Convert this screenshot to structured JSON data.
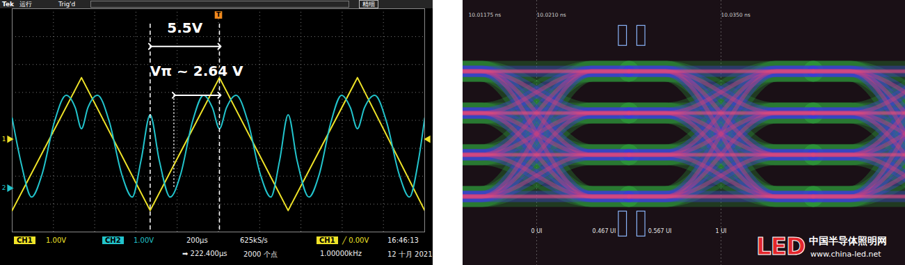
{
  "chart_data": [
    {
      "type": "line",
      "header": [
        "Tek",
        "运行",
        "Trig'd",
        "精细"
      ],
      "xlim": [
        -1000,
        1000
      ],
      "xticks": [
        -1000,
        -800,
        -600,
        -400,
        -200,
        0,
        200,
        400,
        600,
        800,
        1000
      ],
      "ylim": [
        -4,
        4
      ],
      "yticks": [
        -4,
        -3,
        -2,
        -1,
        0,
        1,
        2,
        3,
        4
      ],
      "grid": true,
      "tick_labels": false,
      "series": [
        {
          "name": "CH1",
          "color": "#f0e428",
          "line_style": "straight",
          "x": [
            -1000,
            -664,
            -331,
            5,
            338,
            674,
            1000
          ],
          "values": [
            -3.23,
            1.53,
            -3.23,
            1.53,
            -3.23,
            1.53,
            -3.23
          ]
        },
        {
          "name": "CH2",
          "color": "#22c4cc",
          "line_style": "smooth",
          "x": [
            -1000,
            -956,
            -906,
            -855,
            -795,
            -738,
            -694,
            -664,
            -633,
            -586,
            -529,
            -469,
            -418,
            -375,
            -331,
            -287,
            -234,
            -183,
            -126,
            -72,
            -29,
            5,
            39,
            86,
            143,
            203,
            254,
            297,
            338,
            381,
            439,
            489,
            546,
            597,
            640,
            674,
            708,
            758,
            815,
            876,
            926,
            970,
            1000
          ],
          "values": [
            0.08,
            -1.55,
            -2.75,
            -1.93,
            -0.05,
            0.9,
            0.45,
            -0.3,
            0.45,
            0.9,
            -0.05,
            -1.93,
            -2.75,
            -1.43,
            0.2,
            -1.43,
            -2.75,
            -1.93,
            -0.05,
            0.9,
            0.45,
            -0.3,
            0.45,
            0.9,
            -0.05,
            -1.93,
            -2.75,
            -1.43,
            0.2,
            -1.43,
            -2.75,
            -1.93,
            -0.05,
            0.9,
            0.45,
            -0.3,
            0.45,
            0.9,
            -0.05,
            -1.93,
            -2.75,
            -1.43,
            0.08
          ]
        }
      ],
      "annotations": [
        {
          "text": "5.5V",
          "from": -331,
          "to": 5
        },
        {
          "text": "Vπ ~ 2.64 V",
          "from": -216,
          "to": 5
        }
      ],
      "ch_markers": [
        {
          "label": "1",
          "level": -0.675
        },
        {
          "label": "2",
          "level": -2.43
        }
      ],
      "trigger": {
        "label": "T",
        "at": 0,
        "level": -0.675
      },
      "footer": [
        [
          "CH1",
          "1.00V",
          "CH2",
          "1.00V",
          "200µs",
          "625kS/s",
          "CH1",
          "╱ 0.00V",
          "16:46:13"
        ],
        [
          "➡ 222.400µs",
          "2000 个点",
          "1.00000kHz",
          "12 十月 2021"
        ]
      ]
    },
    {
      "type": "eye",
      "levels": [
        3,
        1,
        -1,
        -3
      ],
      "crossings": [
        0,
        1,
        2
      ],
      "xlim": [
        -0.4,
        2.0
      ],
      "ylim": [
        -6.3,
        6.4
      ],
      "xticks": [
        0,
        1
      ],
      "yticks": [],
      "grid": true,
      "tick_labels": false,
      "x_labels": [
        {
          "value": 0,
          "label": "0 UI"
        },
        {
          "value": 0.467,
          "label": "0.467 UI"
        },
        {
          "value": 0.567,
          "label": "0.567 UI"
        },
        {
          "value": 1,
          "label": "1 UI"
        }
      ],
      "time_labels": [
        {
          "value": -0.37,
          "label": "10.01175 ns"
        },
        {
          "value": 0,
          "label": "10.0210 ns"
        },
        {
          "value": 1,
          "label": "10.0350 ns"
        }
      ],
      "markers": [
        0.467,
        0.567
      ],
      "watermark": {
        "logo": "LED",
        "name": "中国半导体照明网",
        "url": "www.china-led.net"
      }
    }
  ]
}
